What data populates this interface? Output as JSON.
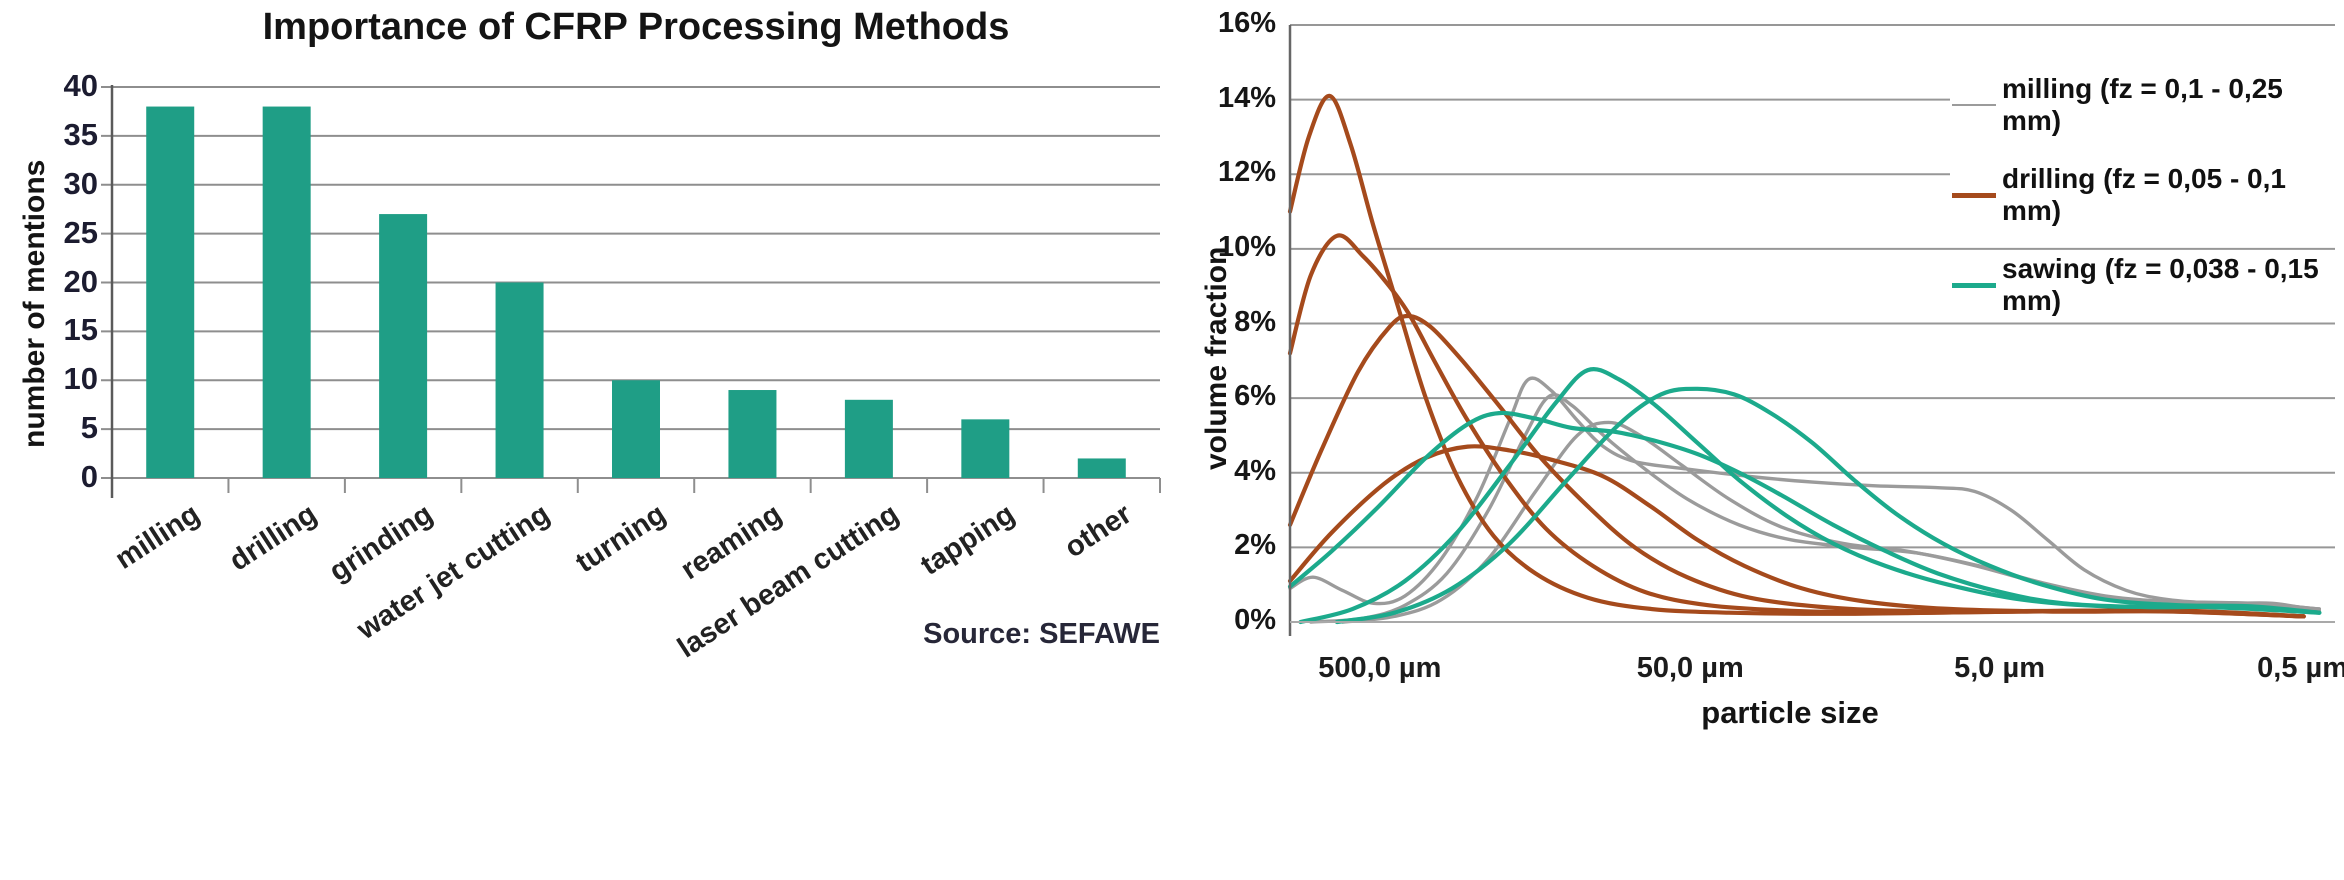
{
  "chart_data": [
    {
      "type": "bar",
      "title": "Importance of CFRP Processing Methods",
      "ylabel": "number of mentions",
      "xlabel": "",
      "source": "Source: SEFAWE",
      "categories": [
        "milling",
        "drilling",
        "grinding",
        "water jet cutting",
        "turning",
        "reaming",
        "laser beam cutting",
        "tapping",
        "other"
      ],
      "values": [
        38,
        38,
        27,
        20,
        10,
        9,
        8,
        6,
        2
      ],
      "ylim": [
        0,
        40
      ],
      "ytick_step": 5,
      "yticks": [
        0,
        5,
        10,
        15,
        20,
        25,
        30,
        35,
        40
      ],
      "bar_color": "#1f9e86",
      "grid_color": "#8e8e8e",
      "axis_color": "#5a5a5a",
      "grid_on": true
    },
    {
      "type": "line",
      "title": "",
      "ylabel": "volume fraction",
      "xlabel": "particle size",
      "x_axis_style": "logarithmic-decreasing",
      "ylim_pct": [
        0,
        16
      ],
      "ytick_step_pct": 2,
      "yticks": [
        "0%",
        "2%",
        "4%",
        "6%",
        "8%",
        "10%",
        "12%",
        "14%",
        "16%"
      ],
      "xticks": [
        {
          "label": "500,0 µm",
          "t": 0.086
        },
        {
          "label": "50,0 µm",
          "t": 0.383
        },
        {
          "label": "5,0 µm",
          "t": 0.679
        },
        {
          "label": "0,5 µm",
          "t": 0.969
        }
      ],
      "grid_color": "#979797",
      "axis_color": "#666666",
      "legend_position": "top-right",
      "legend": [
        {
          "label": "milling (fz = 0,1 - 0,25 mm)",
          "color": "#9b9b9b",
          "thickness": 2
        },
        {
          "label": "drilling (fz = 0,05 - 0,1 mm)",
          "color": "#a54a1c",
          "thickness": 5
        },
        {
          "label": "sawing (fz = 0,038 - 0,15 mm)",
          "color": "#1caa8c",
          "thickness": 5
        }
      ],
      "series": [
        {
          "name": "milling",
          "color": "#9b9b9b",
          "stroke_width": 3.4,
          "curves": [
            [
              [
                0.0,
                0.9
              ],
              [
                0.022,
                1.2
              ],
              [
                0.05,
                0.85
              ],
              [
                0.08,
                0.5
              ],
              [
                0.11,
                0.7
              ],
              [
                0.145,
                1.7
              ],
              [
                0.18,
                3.4
              ],
              [
                0.21,
                5.4
              ],
              [
                0.228,
                6.5
              ],
              [
                0.25,
                6.2
              ],
              [
                0.275,
                5.4
              ],
              [
                0.3,
                4.7
              ],
              [
                0.33,
                4.3
              ],
              [
                0.38,
                4.1
              ],
              [
                0.44,
                3.9
              ],
              [
                0.5,
                3.75
              ],
              [
                0.56,
                3.65
              ],
              [
                0.62,
                3.6
              ],
              [
                0.655,
                3.5
              ],
              [
                0.69,
                3.0
              ],
              [
                0.725,
                2.2
              ],
              [
                0.76,
                1.4
              ],
              [
                0.8,
                0.85
              ],
              [
                0.84,
                0.6
              ],
              [
                0.89,
                0.5
              ],
              [
                0.94,
                0.5
              ],
              [
                0.985,
                0.3
              ]
            ],
            [
              [
                0.02,
                0.0
              ],
              [
                0.07,
                0.1
              ],
              [
                0.11,
                0.45
              ],
              [
                0.15,
                1.3
              ],
              [
                0.19,
                3.0
              ],
              [
                0.225,
                5.0
              ],
              [
                0.248,
                6.05
              ],
              [
                0.27,
                5.8
              ],
              [
                0.3,
                5.0
              ],
              [
                0.335,
                4.2
              ],
              [
                0.38,
                3.3
              ],
              [
                0.43,
                2.6
              ],
              [
                0.48,
                2.2
              ],
              [
                0.54,
                2.0
              ],
              [
                0.6,
                1.85
              ],
              [
                0.66,
                1.5
              ],
              [
                0.72,
                1.05
              ],
              [
                0.78,
                0.7
              ],
              [
                0.84,
                0.55
              ],
              [
                0.92,
                0.5
              ],
              [
                0.985,
                0.35
              ]
            ],
            [
              [
                0.05,
                0.0
              ],
              [
                0.1,
                0.15
              ],
              [
                0.145,
                0.6
              ],
              [
                0.19,
                1.7
              ],
              [
                0.235,
                3.5
              ],
              [
                0.275,
                5.0
              ],
              [
                0.305,
                5.35
              ],
              [
                0.335,
                5.0
              ],
              [
                0.375,
                4.2
              ],
              [
                0.42,
                3.3
              ],
              [
                0.47,
                2.55
              ],
              [
                0.53,
                2.1
              ],
              [
                0.59,
                1.9
              ],
              [
                0.65,
                1.55
              ],
              [
                0.71,
                1.1
              ],
              [
                0.77,
                0.7
              ],
              [
                0.84,
                0.55
              ],
              [
                0.92,
                0.5
              ],
              [
                0.985,
                0.35
              ]
            ]
          ]
        },
        {
          "name": "drilling",
          "color": "#a54a1c",
          "stroke_width": 4.2,
          "curves": [
            [
              [
                0.0,
                11.0
              ],
              [
                0.018,
                13.0
              ],
              [
                0.038,
                14.1
              ],
              [
                0.058,
                12.8
              ],
              [
                0.08,
                10.6
              ],
              [
                0.105,
                8.3
              ],
              [
                0.13,
                6.0
              ],
              [
                0.16,
                3.9
              ],
              [
                0.195,
                2.3
              ],
              [
                0.235,
                1.3
              ],
              [
                0.285,
                0.65
              ],
              [
                0.345,
                0.35
              ],
              [
                0.42,
                0.25
              ],
              [
                0.52,
                0.22
              ],
              [
                0.62,
                0.25
              ],
              [
                0.75,
                0.3
              ],
              [
                0.87,
                0.28
              ],
              [
                0.97,
                0.15
              ]
            ],
            [
              [
                0.0,
                7.2
              ],
              [
                0.02,
                9.3
              ],
              [
                0.045,
                10.35
              ],
              [
                0.07,
                9.8
              ],
              [
                0.095,
                9.0
              ],
              [
                0.115,
                8.2
              ],
              [
                0.14,
                6.9
              ],
              [
                0.17,
                5.4
              ],
              [
                0.205,
                3.9
              ],
              [
                0.245,
                2.5
              ],
              [
                0.29,
                1.5
              ],
              [
                0.34,
                0.8
              ],
              [
                0.4,
                0.45
              ],
              [
                0.48,
                0.3
              ],
              [
                0.58,
                0.25
              ],
              [
                0.7,
                0.28
              ],
              [
                0.82,
                0.3
              ],
              [
                0.97,
                0.15
              ]
            ],
            [
              [
                0.0,
                2.6
              ],
              [
                0.03,
                4.6
              ],
              [
                0.065,
                6.7
              ],
              [
                0.095,
                7.9
              ],
              [
                0.113,
                8.2
              ],
              [
                0.135,
                7.9
              ],
              [
                0.165,
                7.0
              ],
              [
                0.2,
                5.8
              ],
              [
                0.24,
                4.4
              ],
              [
                0.285,
                3.1
              ],
              [
                0.33,
                2.0
              ],
              [
                0.38,
                1.2
              ],
              [
                0.44,
                0.65
              ],
              [
                0.52,
                0.38
              ],
              [
                0.62,
                0.28
              ],
              [
                0.74,
                0.3
              ],
              [
                0.86,
                0.3
              ],
              [
                0.97,
                0.15
              ]
            ],
            [
              [
                0.0,
                1.1
              ],
              [
                0.04,
                2.4
              ],
              [
                0.09,
                3.7
              ],
              [
                0.13,
                4.4
              ],
              [
                0.17,
                4.7
              ],
              [
                0.21,
                4.6
              ],
              [
                0.25,
                4.35
              ],
              [
                0.3,
                3.9
              ],
              [
                0.345,
                3.1
              ],
              [
                0.39,
                2.2
              ],
              [
                0.435,
                1.5
              ],
              [
                0.49,
                0.9
              ],
              [
                0.55,
                0.55
              ],
              [
                0.63,
                0.35
              ],
              [
                0.73,
                0.28
              ],
              [
                0.85,
                0.28
              ],
              [
                0.97,
                0.15
              ]
            ]
          ]
        },
        {
          "name": "sawing",
          "color": "#1caa8c",
          "stroke_width": 4.2,
          "curves": [
            [
              [
                0.0,
                0.95
              ],
              [
                0.04,
                1.9
              ],
              [
                0.085,
                3.1
              ],
              [
                0.13,
                4.4
              ],
              [
                0.17,
                5.3
              ],
              [
                0.2,
                5.6
              ],
              [
                0.235,
                5.45
              ],
              [
                0.27,
                5.2
              ],
              [
                0.31,
                5.1
              ],
              [
                0.35,
                4.85
              ],
              [
                0.39,
                4.5
              ],
              [
                0.43,
                4.0
              ],
              [
                0.47,
                3.4
              ],
              [
                0.52,
                2.6
              ],
              [
                0.57,
                1.9
              ],
              [
                0.62,
                1.3
              ],
              [
                0.68,
                0.8
              ],
              [
                0.74,
                0.5
              ],
              [
                0.82,
                0.4
              ],
              [
                0.9,
                0.4
              ],
              [
                0.985,
                0.25
              ]
            ],
            [
              [
                0.01,
                0.0
              ],
              [
                0.06,
                0.35
              ],
              [
                0.11,
                1.1
              ],
              [
                0.16,
                2.4
              ],
              [
                0.21,
                4.2
              ],
              [
                0.255,
                5.9
              ],
              [
                0.285,
                6.75
              ],
              [
                0.315,
                6.5
              ],
              [
                0.35,
                5.8
              ],
              [
                0.39,
                4.8
              ],
              [
                0.43,
                3.8
              ],
              [
                0.475,
                2.85
              ],
              [
                0.52,
                2.1
              ],
              [
                0.57,
                1.5
              ],
              [
                0.63,
                1.0
              ],
              [
                0.7,
                0.6
              ],
              [
                0.78,
                0.42
              ],
              [
                0.88,
                0.4
              ],
              [
                0.985,
                0.25
              ]
            ],
            [
              [
                0.045,
                0.0
              ],
              [
                0.1,
                0.25
              ],
              [
                0.155,
                0.9
              ],
              [
                0.21,
                2.1
              ],
              [
                0.265,
                3.8
              ],
              [
                0.315,
                5.3
              ],
              [
                0.355,
                6.1
              ],
              [
                0.39,
                6.25
              ],
              [
                0.425,
                6.1
              ],
              [
                0.46,
                5.6
              ],
              [
                0.5,
                4.8
              ],
              [
                0.54,
                3.8
              ],
              [
                0.58,
                2.9
              ],
              [
                0.625,
                2.1
              ],
              [
                0.67,
                1.5
              ],
              [
                0.72,
                1.0
              ],
              [
                0.78,
                0.6
              ],
              [
                0.85,
                0.45
              ],
              [
                0.92,
                0.42
              ],
              [
                0.985,
                0.25
              ]
            ]
          ]
        }
      ]
    }
  ]
}
